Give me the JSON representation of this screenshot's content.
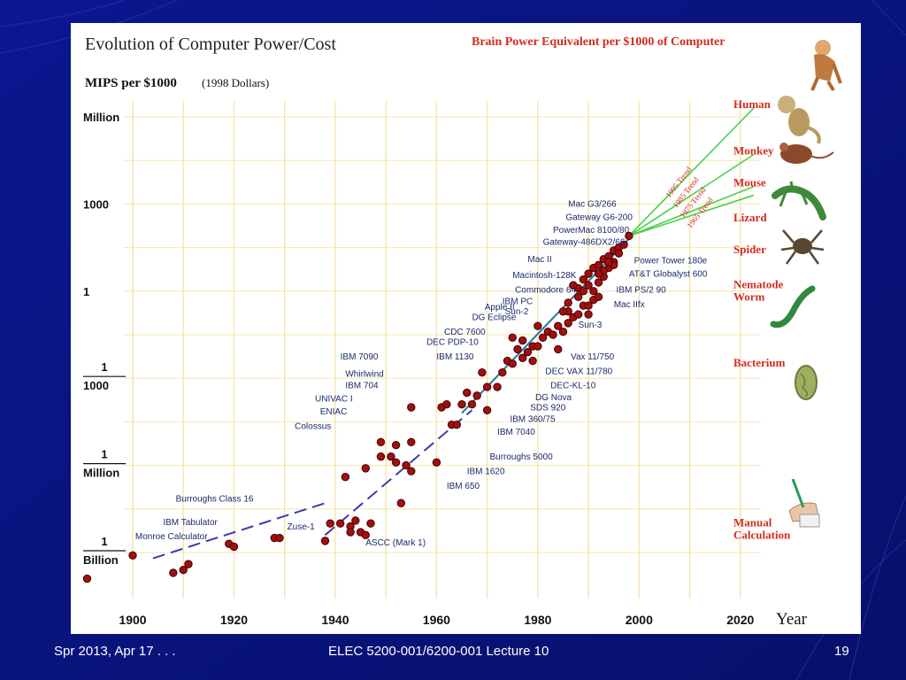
{
  "slide": {
    "footer_left": "Spr 2013, Apr 17 . . .",
    "footer_center": "ELEC 5200-001/6200-001 Lecture 10",
    "page_number": "19"
  },
  "chart_data": {
    "type": "scatter",
    "title": "Evolution of Computer Power/Cost",
    "ylabel": "MIPS per $1000",
    "ylabel_note": "(1998 Dollars)",
    "xlabel": "Year",
    "y_scale": "log",
    "grid": true,
    "xlim": [
      1890,
      2030
    ],
    "ylim_log10": [
      -9.5,
      7.5
    ],
    "x_ticks": [
      "1900",
      "1920",
      "1940",
      "1960",
      "1980",
      "2000",
      "2020"
    ],
    "y_ticks": [
      {
        "log10": 6,
        "lines": [
          "Million"
        ]
      },
      {
        "log10": 3,
        "lines": [
          "1000"
        ]
      },
      {
        "log10": 0,
        "lines": [
          "1"
        ]
      },
      {
        "log10": -3,
        "lines": [
          "1",
          "1000"
        ]
      },
      {
        "log10": -6,
        "lines": [
          "1",
          "Million"
        ]
      },
      {
        "log10": -9,
        "lines": [
          "1",
          "Billion"
        ]
      }
    ],
    "brain_header": "Brain Power Equivalent per $1000 of Computer",
    "brain_levels": [
      {
        "label": "Human",
        "log10": 6.3
      },
      {
        "label": "Monkey",
        "log10": 4.7
      },
      {
        "label": "Mouse",
        "log10": 3.6
      },
      {
        "label": "Lizard",
        "log10": 2.4
      },
      {
        "label": "Spider",
        "log10": 1.3
      },
      {
        "label": "Nematode Worm",
        "log10": 0.1
      },
      {
        "label": "Bacterium",
        "log10": -2.6
      },
      {
        "label": "Manual Calculation",
        "log10": -8.1
      }
    ],
    "trend_lines": [
      {
        "label": "1995 Trend",
        "from": [
          1998,
          1.9
        ],
        "to": [
          2020,
          6.3
        ]
      },
      {
        "label": "1985 Trend",
        "from": [
          1998,
          1.9
        ],
        "to": [
          2020,
          4.7
        ]
      },
      {
        "label": "1975 Trend",
        "from": [
          1998,
          1.9
        ],
        "to": [
          2020,
          3.6
        ]
      },
      {
        "label": "1965 Trend",
        "from": [
          1998,
          1.9
        ],
        "to": [
          2020,
          3.3
        ]
      }
    ],
    "points": [
      [
        1891,
        -9.9
      ],
      [
        1900,
        -9.1
      ],
      [
        1908,
        -9.7
      ],
      [
        1910,
        -9.6
      ],
      [
        1911,
        -9.4
      ],
      [
        1919,
        -8.7
      ],
      [
        1920,
        -8.8
      ],
      [
        1928,
        -8.5
      ],
      [
        1929,
        -8.5
      ],
      [
        1938,
        -8.6
      ],
      [
        1939,
        -8.0
      ],
      [
        1941,
        -8.0
      ],
      [
        1943,
        -8.1
      ],
      [
        1943,
        -8.3
      ],
      [
        1944,
        -7.9
      ],
      [
        1945,
        -8.3
      ],
      [
        1946,
        -8.4
      ],
      [
        1947,
        -8.0
      ],
      [
        1953,
        -7.3
      ],
      [
        1942,
        -6.4
      ],
      [
        1946,
        -6.1
      ],
      [
        1949,
        -5.7
      ],
      [
        1951,
        -5.7
      ],
      [
        1952,
        -5.9
      ],
      [
        1954,
        -6.0
      ],
      [
        1955,
        -6.2
      ],
      [
        1952,
        -5.3
      ],
      [
        1949,
        -5.2
      ],
      [
        1955,
        -5.2
      ],
      [
        1960,
        -5.9
      ],
      [
        1955,
        -4.0
      ],
      [
        1961,
        -4.0
      ],
      [
        1962,
        -3.9
      ],
      [
        1963,
        -4.6
      ],
      [
        1964,
        -4.6
      ],
      [
        1965,
        -3.9
      ],
      [
        1966,
        -3.5
      ],
      [
        1967,
        -3.9
      ],
      [
        1968,
        -3.6
      ],
      [
        1969,
        -2.8
      ],
      [
        1970,
        -3.3
      ],
      [
        1970,
        -4.1
      ],
      [
        1972,
        -3.3
      ],
      [
        1973,
        -2.8
      ],
      [
        1974,
        -2.4
      ],
      [
        1975,
        -1.6
      ],
      [
        1975,
        -2.5
      ],
      [
        1976,
        -2.0
      ],
      [
        1977,
        -2.3
      ],
      [
        1977,
        -1.7
      ],
      [
        1978,
        -2.1
      ],
      [
        1979,
        -1.9
      ],
      [
        1979,
        -2.4
      ],
      [
        1980,
        -1.9
      ],
      [
        1980,
        -1.2
      ],
      [
        1981,
        -1.6
      ],
      [
        1982,
        -1.4
      ],
      [
        1983,
        -1.5
      ],
      [
        1984,
        -1.2
      ],
      [
        1984,
        -2.0
      ],
      [
        1985,
        -1.4
      ],
      [
        1986,
        -0.7
      ],
      [
        1986,
        -1.1
      ],
      [
        1987,
        -0.9
      ],
      [
        1988,
        -0.8
      ],
      [
        1989,
        -0.5
      ],
      [
        1990,
        -0.8
      ],
      [
        1990,
        -0.5
      ],
      [
        1991,
        -0.3
      ],
      [
        1991,
        0.0
      ],
      [
        1992,
        0.3
      ],
      [
        1992,
        -0.2
      ],
      [
        1993,
        0.5
      ],
      [
        1994,
        0.8
      ],
      [
        1995,
        1.0
      ],
      [
        1995,
        1.4
      ],
      [
        1996,
        1.5
      ],
      [
        1997,
        1.6
      ],
      [
        1998,
        1.9
      ],
      [
        1988,
        0.1
      ],
      [
        1989,
        0.4
      ],
      [
        1990,
        0.6
      ],
      [
        1991,
        0.8
      ],
      [
        1992,
        0.9
      ],
      [
        1993,
        1.1
      ],
      [
        1994,
        1.2
      ],
      [
        1995,
        0.9
      ],
      [
        1996,
        1.3
      ],
      [
        1987,
        0.2
      ],
      [
        1988,
        -0.2
      ],
      [
        1989,
        0.0
      ],
      [
        1990,
        0.2
      ],
      [
        1993,
        0.7
      ],
      [
        1994,
        1.0
      ],
      [
        1986,
        -0.4
      ],
      [
        1985,
        -0.7
      ],
      [
        1992,
        0.6
      ]
    ],
    "trend_segments": [
      [
        [
          1904,
          -9.2
        ],
        [
          1938,
          -7.3
        ]
      ],
      [
        [
          1938,
          -8.4
        ],
        [
          1967,
          -4.1
        ]
      ],
      [
        [
          1965,
          -4.2
        ],
        [
          1998,
          1.8
        ]
      ]
    ],
    "annotations": [
      {
        "text": "Mac G3/266",
        "x": 1986,
        "y": 2.9
      },
      {
        "text": "Gateway G6-200",
        "x": 1985.5,
        "y": 2.45
      },
      {
        "text": "PowerMac 8100/80",
        "x": 1983,
        "y": 2.0
      },
      {
        "text": "Gateway-486DX2/66",
        "x": 1981,
        "y": 1.6
      },
      {
        "text": "Mac II",
        "x": 1978,
        "y": 1.0
      },
      {
        "text": "Macintosh-128K",
        "x": 1975,
        "y": 0.45
      },
      {
        "text": "Commodore 64",
        "x": 1975.5,
        "y": -0.05
      },
      {
        "text": "IBM PC",
        "x": 1973,
        "y": -0.45
      },
      {
        "text": "Sun-2",
        "x": 1973.5,
        "y": -0.8
      },
      {
        "text": "Apple II",
        "x": 1969.5,
        "y": -0.65
      },
      {
        "text": "DG Eclipse",
        "x": 1967,
        "y": -1.0
      },
      {
        "text": "CDC 7600",
        "x": 1961.5,
        "y": -1.5
      },
      {
        "text": "DEC PDP-10",
        "x": 1958,
        "y": -1.85
      },
      {
        "text": "IBM 7090",
        "x": 1941,
        "y": -2.35
      },
      {
        "text": "IBM 1130",
        "x": 1960,
        "y": -2.35
      },
      {
        "text": "Whirlwind",
        "x": 1942,
        "y": -2.95
      },
      {
        "text": "IBM 704",
        "x": 1942,
        "y": -3.35
      },
      {
        "text": "UNIVAC I",
        "x": 1936,
        "y": -3.8
      },
      {
        "text": "ENIAC",
        "x": 1937,
        "y": -4.25
      },
      {
        "text": "Colossus",
        "x": 1932,
        "y": -4.75
      },
      {
        "text": "Burroughs Class 16",
        "x": 1908.5,
        "y": -7.25
      },
      {
        "text": "IBM Tabulator",
        "x": 1906,
        "y": -8.05
      },
      {
        "text": "Monroe Calculator",
        "x": 1900.5,
        "y": -8.55
      },
      {
        "text": "Zuse-1",
        "x": 1930.5,
        "y": -8.2
      },
      {
        "text": "ASCC (Mark 1)",
        "x": 1946,
        "y": -8.75
      },
      {
        "text": "Power Tower 180e",
        "x": 1999,
        "y": 0.95
      },
      {
        "text": "AT&T Globalyst 600",
        "x": 1998,
        "y": 0.5
      },
      {
        "text": "IBM PS/2 90",
        "x": 1995.5,
        "y": -0.05
      },
      {
        "text": "Mac IIfx",
        "x": 1995,
        "y": -0.55
      },
      {
        "text": "Sun-3",
        "x": 1988,
        "y": -1.25
      },
      {
        "text": "Vax 11/750",
        "x": 1986.5,
        "y": -2.35
      },
      {
        "text": "DEC VAX 11/780",
        "x": 1981.5,
        "y": -2.85
      },
      {
        "text": "DEC-KL-10",
        "x": 1982.5,
        "y": -3.35
      },
      {
        "text": "DG Nova",
        "x": 1979.5,
        "y": -3.75
      },
      {
        "text": "SDS 920",
        "x": 1978.5,
        "y": -4.1
      },
      {
        "text": "IBM 360/75",
        "x": 1974.5,
        "y": -4.5
      },
      {
        "text": "IBM 7040",
        "x": 1972,
        "y": -4.95
      },
      {
        "text": "Burroughs 5000",
        "x": 1970.5,
        "y": -5.8
      },
      {
        "text": "IBM 1620",
        "x": 1966,
        "y": -6.3
      },
      {
        "text": "IBM 650",
        "x": 1962,
        "y": -6.8
      }
    ]
  }
}
